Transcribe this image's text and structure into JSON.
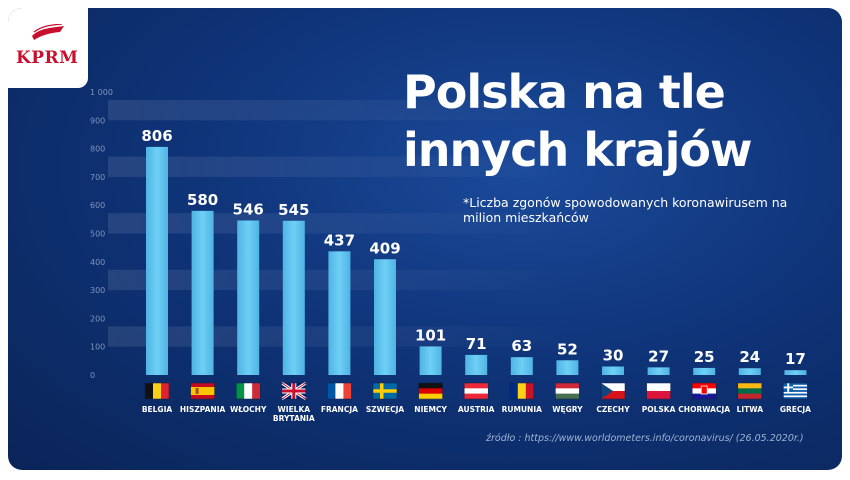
{
  "logo": {
    "text": "KPRM"
  },
  "title_line1": "Polska na tle",
  "title_line2": "innych krajów",
  "subtitle": "*Liczba zgonów spowodowanych koronawirusem na milion mieszkańców",
  "source": "źródło : https://www.worldometers.info/coronavirus/ (26.05.2020r.)",
  "colors": {
    "bar": "#5ec4ee",
    "highlight_value": "#3fd64a",
    "background": "#0f3479"
  },
  "chart_data": {
    "type": "bar",
    "title": "Polska na tle innych krajów",
    "ylim": [
      0,
      1000
    ],
    "yticks": [
      "0",
      "100",
      "200",
      "300",
      "400",
      "500",
      "600",
      "700",
      "800",
      "900",
      "1 000"
    ],
    "categories": [
      [
        "BELGIA"
      ],
      [
        "HISZPANIA"
      ],
      [
        "WŁOCHY"
      ],
      [
        "WIELKA",
        "BRYTANIA"
      ],
      [
        "FRANCJA"
      ],
      [
        "SZWECJA"
      ],
      [
        "NIEMCY"
      ],
      [
        "AUSTRIA"
      ],
      [
        "RUMUNIA"
      ],
      [
        "WĘGRY"
      ],
      [
        "CZECHY"
      ],
      [
        "POLSKA"
      ],
      [
        "CHORWACJA"
      ],
      [
        "LITWA"
      ],
      [
        "GRECJA"
      ]
    ],
    "values": [
      806,
      580,
      546,
      545,
      437,
      409,
      101,
      71,
      63,
      52,
      30,
      27,
      25,
      24,
      17
    ],
    "highlight": "POLSKA",
    "flags": [
      "belgium-flag",
      "spain-flag",
      "italy-flag",
      "uk-flag",
      "france-flag",
      "sweden-flag",
      "germany-flag",
      "austria-flag",
      "romania-flag",
      "hungary-flag",
      "czech-flag",
      "poland-flag",
      "croatia-flag",
      "lithuania-flag",
      "greece-flag"
    ]
  }
}
